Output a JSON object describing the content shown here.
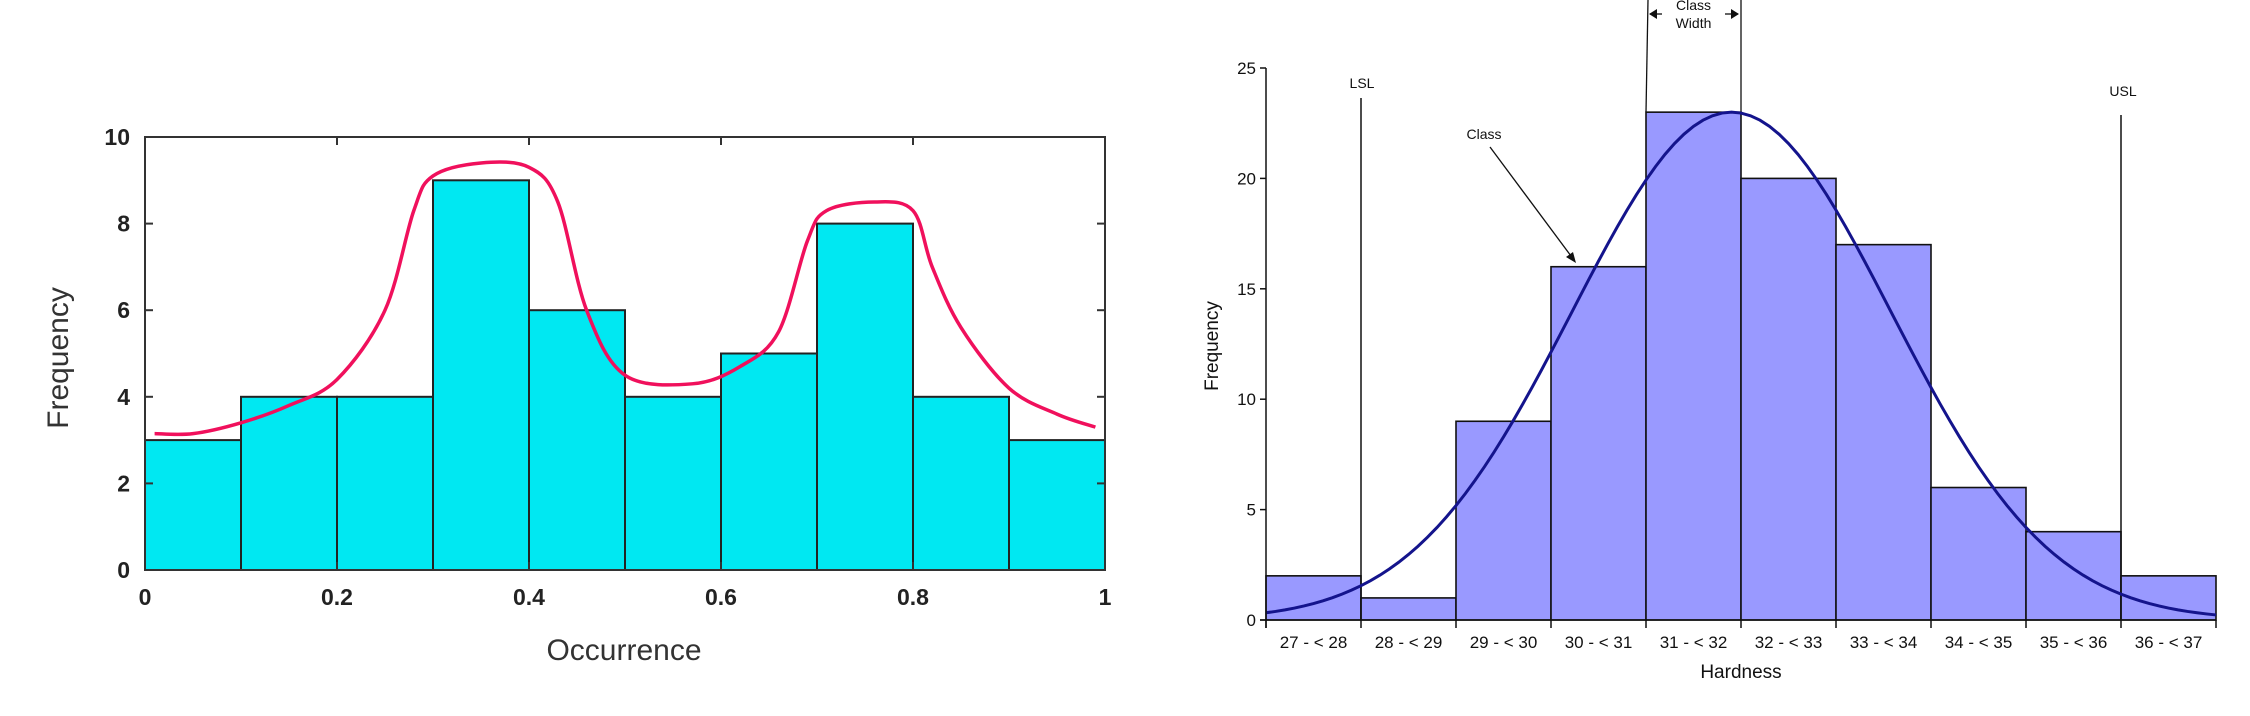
{
  "chart_data": [
    {
      "type": "bar",
      "title": "",
      "xlabel": "Occurrence",
      "ylabel": "Frequency",
      "bin_edges": [
        0,
        0.1,
        0.2,
        0.3,
        0.4,
        0.5,
        0.6,
        0.7,
        0.8,
        0.9,
        1.0
      ],
      "values": [
        3,
        4,
        4,
        9,
        6,
        4,
        5,
        8,
        4,
        3
      ],
      "xlim": [
        0,
        1
      ],
      "ylim": [
        0,
        10
      ],
      "xticks": [
        "0",
        "0.2",
        "0.4",
        "0.6",
        "0.8",
        "1"
      ],
      "yticks": [
        "0",
        "2",
        "4",
        "6",
        "8",
        "10"
      ],
      "bar_color": "#00E8F2",
      "overlay_curve": {
        "color": "#F0105C",
        "x": [
          0.01,
          0.05,
          0.1,
          0.15,
          0.2,
          0.25,
          0.28,
          0.3,
          0.35,
          0.4,
          0.43,
          0.46,
          0.5,
          0.57,
          0.62,
          0.66,
          0.69,
          0.71,
          0.76,
          0.8,
          0.82,
          0.85,
          0.9,
          0.95,
          0.99
        ],
        "y": [
          3.15,
          3.15,
          3.4,
          3.8,
          4.4,
          6.0,
          8.3,
          9.1,
          9.4,
          9.3,
          8.5,
          6.0,
          4.5,
          4.3,
          4.7,
          5.5,
          7.6,
          8.3,
          8.5,
          8.3,
          7.0,
          5.6,
          4.2,
          3.6,
          3.3
        ]
      }
    },
    {
      "type": "bar",
      "title": "",
      "xlabel": "Hardness",
      "ylabel": "Frequency",
      "categories": [
        "27 - < 28",
        "28 - < 29",
        "29 - < 30",
        "30 - < 31",
        "31 - < 32",
        "32 - < 33",
        "33 - < 34",
        "34 - < 35",
        "35 - < 36",
        "36 - < 37"
      ],
      "bin_edges": [
        27,
        28,
        29,
        30,
        31,
        32,
        33,
        34,
        35,
        36,
        37
      ],
      "values": [
        2,
        1,
        9,
        16,
        23,
        20,
        17,
        6,
        4,
        2
      ],
      "ylim": [
        0,
        25
      ],
      "yticks": [
        "0",
        "5",
        "10",
        "15",
        "20",
        "25"
      ],
      "bar_color": "#9999FF",
      "normal_curve": {
        "color": "#14148C",
        "mean": 31.9,
        "sigma": 1.68,
        "peak": 23
      },
      "annotations": {
        "lsl": {
          "label": "LSL",
          "x": 28
        },
        "usl": {
          "label": "USL",
          "x": 36
        },
        "class_width": {
          "line1": "Class",
          "line2": "Width"
        },
        "class": "Class"
      }
    }
  ]
}
